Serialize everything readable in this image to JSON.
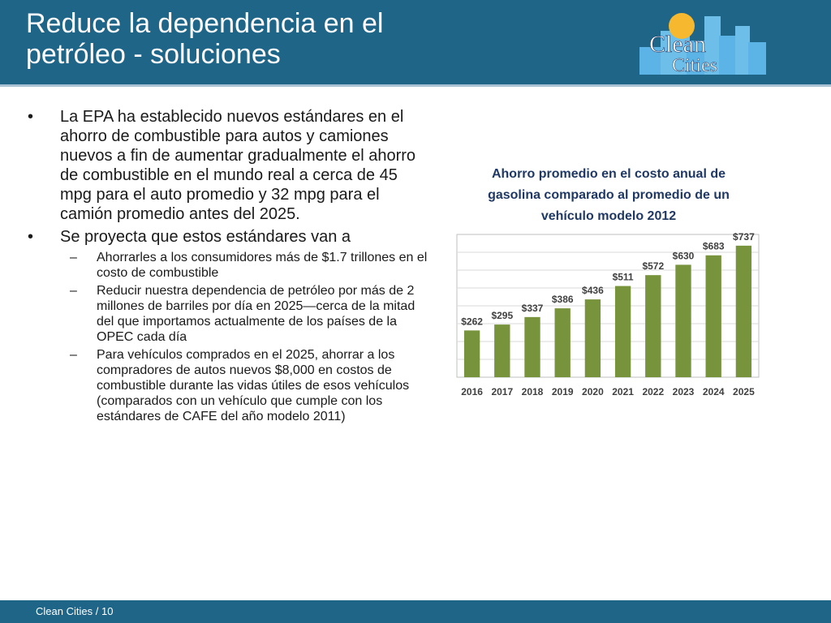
{
  "slide": {
    "title": "Reduce la dependencia en el\npetróleo - soluciones",
    "footer_text": "Clean Cities",
    "footer_separator": "/",
    "page_number": "10"
  },
  "logo": {
    "text_top": "Clean",
    "text_bottom": "Cities"
  },
  "bullets": [
    {
      "text": "La EPA ha establecido nuevos estándares en el ahorro de combustible para autos y camiones nuevos a fin de aumentar gradualmente el ahorro de combustible en el mundo real a cerca de 45 mpg para el auto promedio y 32 mpg para el camión promedio antes del 2025.",
      "mark": "•"
    },
    {
      "text": "Se proyecta que estos estándares van a",
      "mark": "•"
    }
  ],
  "subbullets": [
    {
      "text": "Ahorrarles a los consumidores más de $1.7 trillones en el costo de combustible",
      "mark": "–"
    },
    {
      "text": "Reducir nuestra dependencia de petróleo por más de 2 millones de barriles por día en 2025—cerca de la mitad del que importamos actualmente de los países de la OPEC cada día",
      "mark": "–"
    },
    {
      "text": "Para vehículos comprados en el 2025, ahorrar a los compradores de autos nuevos $8,000 en costos de combustible durante las vidas útiles de esos vehículos (comparados con un vehículo que cumple con los estándares de CAFE del año modelo 2011)",
      "mark": "–"
    }
  ],
  "chart_data": {
    "type": "bar",
    "title_lines": [
      "Ahorro promedio en el costo anual de",
      "gasolina comparado al promedio de un",
      "vehículo modelo 2012"
    ],
    "categories": [
      "2016",
      "2017",
      "2018",
      "2019",
      "2020",
      "2021",
      "2022",
      "2023",
      "2024",
      "2025"
    ],
    "values": [
      262,
      295,
      337,
      386,
      436,
      511,
      572,
      630,
      683,
      737
    ],
    "value_labels": [
      "$262",
      "$295",
      "$337",
      "$386",
      "$436",
      "$511",
      "$572",
      "$630",
      "$683",
      "$737"
    ],
    "ylim": [
      0,
      800
    ],
    "grid": true,
    "bar_color": "#77933c",
    "title_color": "#1f3864"
  },
  "colors": {
    "header": "#1e6588",
    "footer": "#1e6588"
  }
}
